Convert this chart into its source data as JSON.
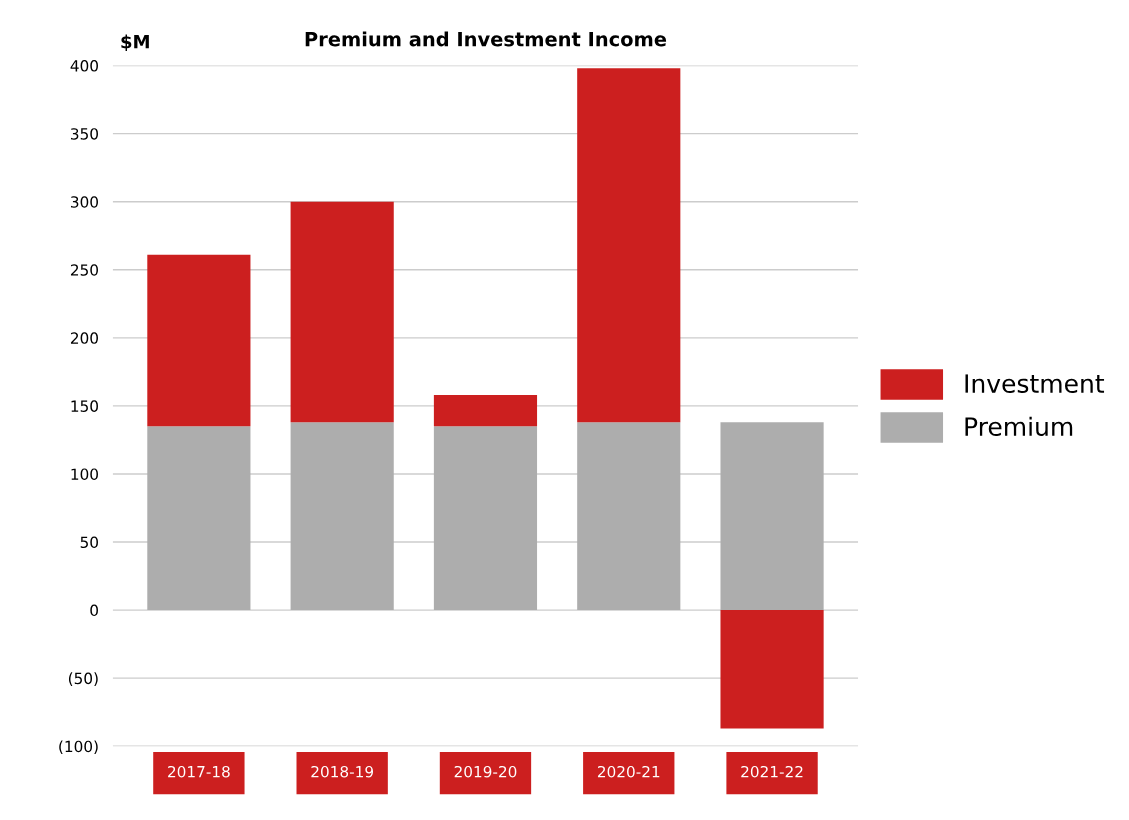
{
  "chart_data": {
    "type": "bar",
    "title": "Premium and Investment Income",
    "ylabel": "$M",
    "stacked": true,
    "categories": [
      "2017-18",
      "2018-19",
      "2019-20",
      "2020-21",
      "2021-22"
    ],
    "series": [
      {
        "name": "Premium",
        "color": "#adadad",
        "values": [
          135,
          138,
          135,
          138,
          138
        ]
      },
      {
        "name": "Investment",
        "color": "#cc1f1f",
        "values": [
          126,
          162,
          23,
          260,
          -87
        ]
      }
    ],
    "ylim": [
      -100,
      400
    ],
    "yticks": [
      {
        "value": -100,
        "label": "(100)"
      },
      {
        "value": -50,
        "label": "(50)"
      },
      0,
      50,
      100,
      150,
      200,
      250,
      300,
      350,
      400
    ],
    "grid": "y",
    "legend": "right"
  }
}
